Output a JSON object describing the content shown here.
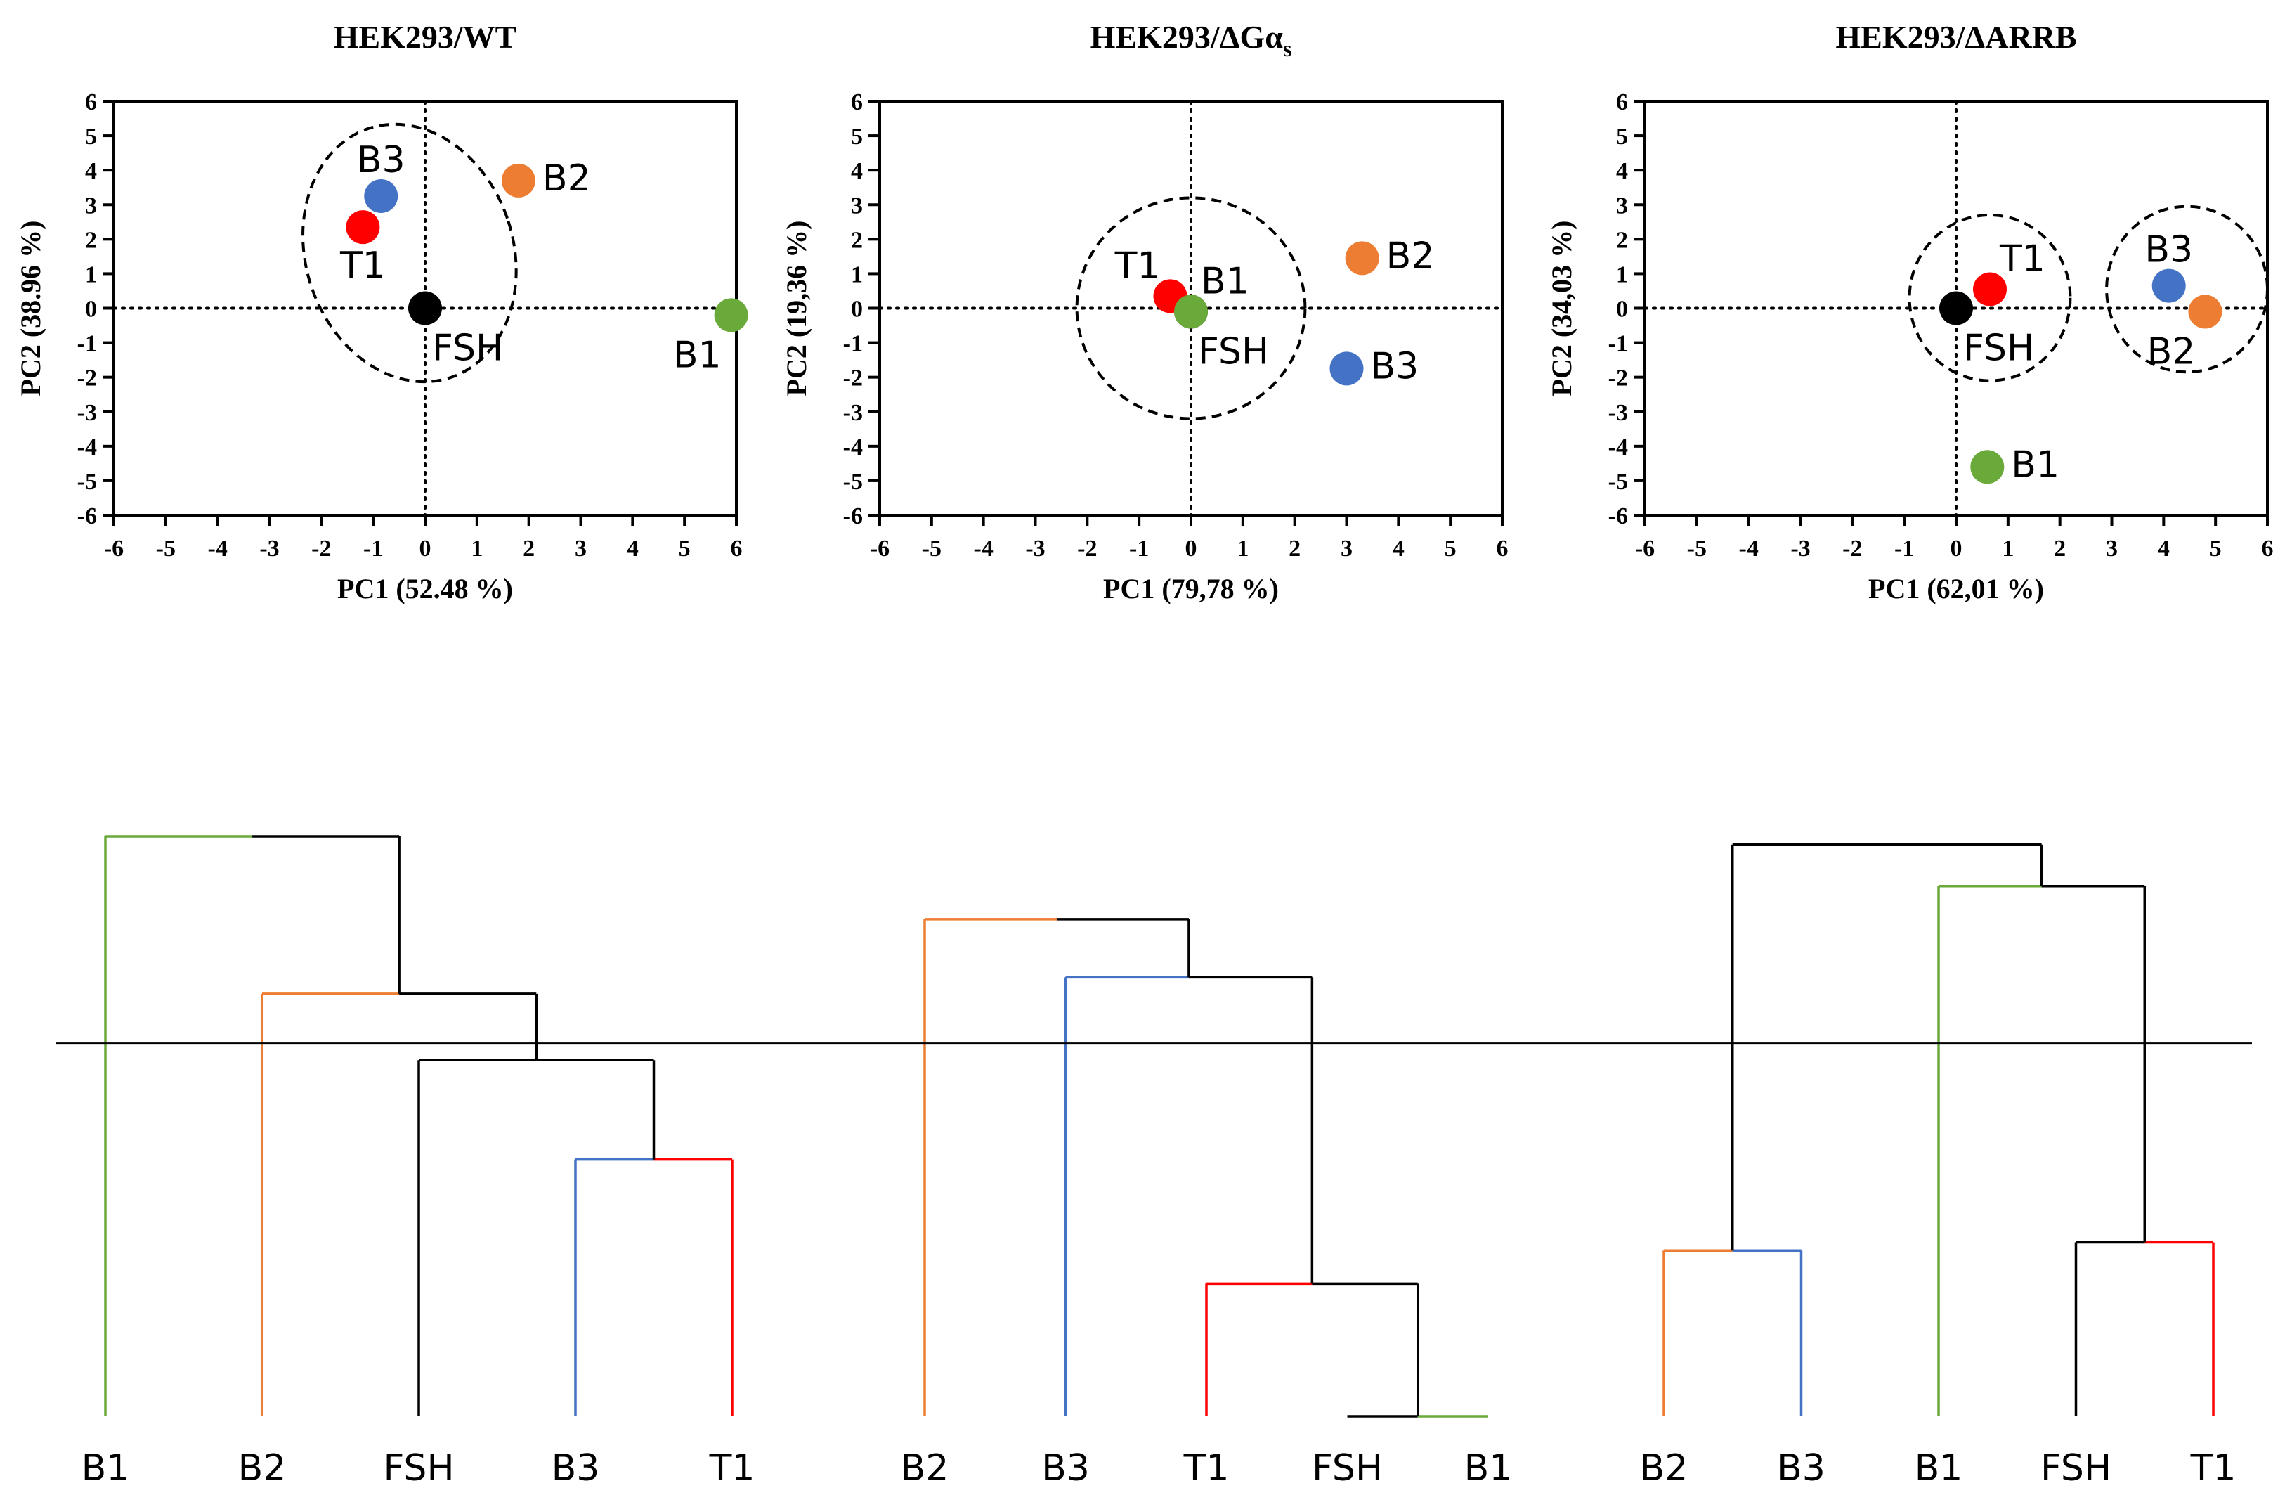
{
  "colors": {
    "FSH": "#000000",
    "T1": "#ff0000",
    "B1": "#6aaa3a",
    "B2": "#ec7d32",
    "B3": "#4472c4",
    "line": "#000000"
  },
  "chart_data": [
    {
      "type": "scatter",
      "title_main": "HEK293/WT",
      "title_sub": "",
      "xlabel": "PC1 (52.48 %)",
      "ylabel": "PC2 (38.96 %)",
      "xlim": [
        -6,
        6
      ],
      "ylim": [
        -6,
        6
      ],
      "ticks": [
        -6,
        -5,
        -4,
        -3,
        -2,
        -1,
        0,
        1,
        2,
        3,
        4,
        5,
        6
      ],
      "points": [
        {
          "name": "FSH",
          "x": 0.0,
          "y": 0.0,
          "label": "FSH",
          "lpos": "below-right"
        },
        {
          "name": "T1",
          "x": -1.2,
          "y": 2.35,
          "label": "T1",
          "lpos": "below"
        },
        {
          "name": "B3",
          "x": -0.85,
          "y": 3.25,
          "label": "B3",
          "lpos": "above"
        },
        {
          "name": "B2",
          "x": 1.8,
          "y": 3.7,
          "label": "B2",
          "lpos": "right"
        },
        {
          "name": "B1",
          "x": 5.9,
          "y": -0.2,
          "label": "B1",
          "lpos": "below-left"
        }
      ],
      "clusters": [
        {
          "cx": -0.3,
          "cy": 1.6,
          "rx": 2.0,
          "ry": 3.8,
          "angle": 18
        }
      ]
    },
    {
      "type": "scatter",
      "title_main": "HEK293/ΔGα",
      "title_sub": "s",
      "xlabel": "PC1 (79,78 %)",
      "ylabel": "PC2 (19,36 %)",
      "xlim": [
        -6,
        6
      ],
      "ylim": [
        -6,
        6
      ],
      "ticks": [
        -6,
        -5,
        -4,
        -3,
        -2,
        -1,
        0,
        1,
        2,
        3,
        4,
        5,
        6
      ],
      "points": [
        {
          "name": "FSH",
          "x": 0.0,
          "y": -0.1,
          "label": "FSH",
          "lpos": "below-right"
        },
        {
          "name": "T1",
          "x": -0.4,
          "y": 0.35,
          "label": "T1",
          "lpos": "above-left"
        },
        {
          "name": "B1",
          "x": 0.0,
          "y": -0.1,
          "label": "B1",
          "lpos": "above-right"
        },
        {
          "name": "B2",
          "x": 3.3,
          "y": 1.45,
          "label": "B2",
          "lpos": "right"
        },
        {
          "name": "B3",
          "x": 3.0,
          "y": -1.75,
          "label": "B3",
          "lpos": "right"
        }
      ],
      "clusters": [
        {
          "cx": 0.0,
          "cy": 0.0,
          "rx": 2.2,
          "ry": 3.2,
          "angle": 0
        }
      ]
    },
    {
      "type": "scatter",
      "title_main": "HEK293/ΔARRB",
      "title_sub": "",
      "xlabel": "PC1 (62,01 %)",
      "ylabel": "PC2 (34,03 %)",
      "xlim": [
        -6,
        6
      ],
      "ylim": [
        -6,
        6
      ],
      "ticks": [
        -6,
        -5,
        -4,
        -3,
        -2,
        -1,
        0,
        1,
        2,
        3,
        4,
        5,
        6
      ],
      "points": [
        {
          "name": "FSH",
          "x": 0.0,
          "y": 0.0,
          "label": "FSH",
          "lpos": "below-right"
        },
        {
          "name": "T1",
          "x": 0.65,
          "y": 0.55,
          "label": "T1",
          "lpos": "above-right"
        },
        {
          "name": "B3",
          "x": 4.1,
          "y": 0.65,
          "label": "B3",
          "lpos": "above"
        },
        {
          "name": "B2",
          "x": 4.8,
          "y": -0.1,
          "label": "B2",
          "lpos": "below-left"
        },
        {
          "name": "B1",
          "x": 0.6,
          "y": -4.6,
          "label": "B1",
          "lpos": "right"
        }
      ],
      "clusters": [
        {
          "cx": 0.65,
          "cy": 0.3,
          "rx": 1.55,
          "ry": 2.4,
          "angle": 0
        },
        {
          "cx": 4.45,
          "cy": 0.55,
          "rx": 1.55,
          "ry": 2.4,
          "angle": 0
        }
      ]
    },
    {
      "type": "dendrogram",
      "leaves": [
        "B1",
        "B2",
        "FSH",
        "B3",
        "T1"
      ],
      "merges": [
        {
          "a": 3,
          "b": 4,
          "h": 0.31
        },
        {
          "a": 2,
          "b": 5,
          "h": 0.43
        },
        {
          "a": 1,
          "b": 6,
          "h": 0.51
        },
        {
          "a": 0,
          "b": 7,
          "h": 0.7
        }
      ]
    },
    {
      "type": "dendrogram",
      "leaves": [
        "B2",
        "B3",
        "T1",
        "FSH",
        "B1"
      ],
      "merges": [
        {
          "a": 3,
          "b": 4,
          "h": 0.0
        },
        {
          "a": 2,
          "b": 5,
          "h": 0.16
        },
        {
          "a": 1,
          "b": 6,
          "h": 0.53
        },
        {
          "a": 0,
          "b": 7,
          "h": 0.6
        }
      ]
    },
    {
      "type": "dendrogram",
      "leaves": [
        "B2",
        "B3",
        "B1",
        "FSH",
        "T1"
      ],
      "merges": [
        {
          "a": 0,
          "b": 1,
          "h": 0.2
        },
        {
          "a": 3,
          "b": 4,
          "h": 0.21
        },
        {
          "a": 2,
          "b": 6,
          "h": 0.64
        },
        {
          "a": 5,
          "b": 7,
          "h": 0.69
        }
      ]
    }
  ],
  "cutoff_height": 0.45
}
